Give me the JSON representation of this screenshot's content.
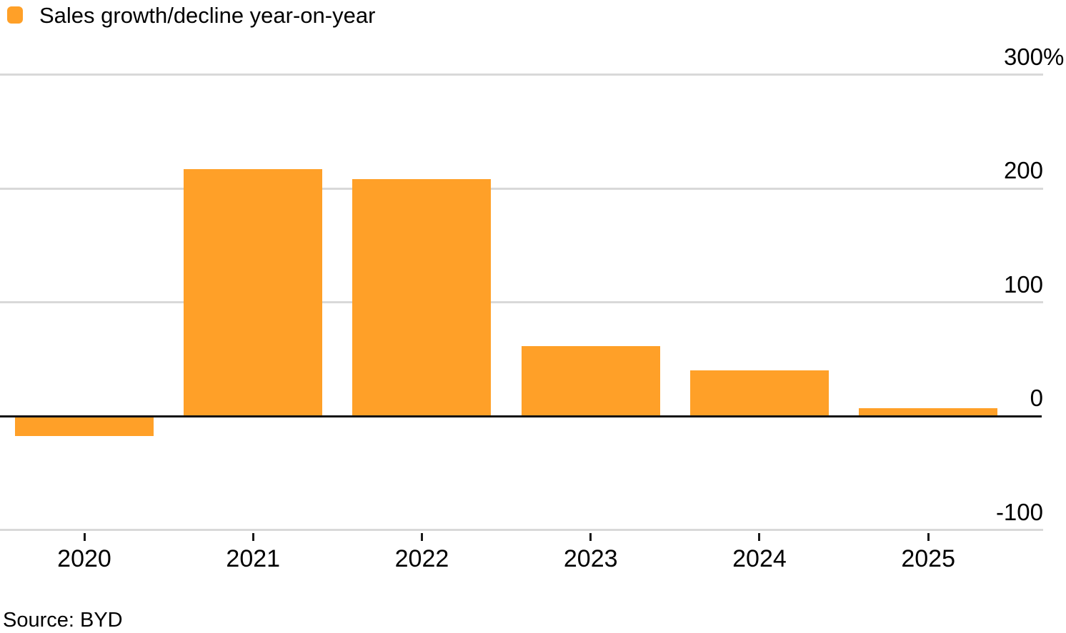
{
  "legend": {
    "label": "Sales growth/decline year-on-year",
    "swatch_color": "#FFA028"
  },
  "source": {
    "text": "Source: BYD"
  },
  "colors": {
    "bar": "#FFA028",
    "grid": "#D9D9D9",
    "zero_line": "#121212",
    "text": "#000000",
    "background": "#FFFFFF"
  },
  "chart_data": {
    "type": "bar",
    "title": "",
    "xlabel": "",
    "ylabel": "%",
    "series_name": "Sales growth/decline year-on-year",
    "categories": [
      "2020",
      "2021",
      "2022",
      "2023",
      "2024",
      "2025"
    ],
    "values": [
      -17.5,
      217,
      208,
      61.5,
      40,
      7
    ],
    "ylim": [
      -100,
      300
    ],
    "yticks": [
      {
        "value": 300,
        "label": "300%"
      },
      {
        "value": 200,
        "label": "200"
      },
      {
        "value": 100,
        "label": "100"
      },
      {
        "value": 0,
        "label": "0"
      },
      {
        "value": -100,
        "label": "-100"
      }
    ],
    "grid": "horizontal",
    "legend_position": "top-left",
    "axis_side": "right"
  }
}
